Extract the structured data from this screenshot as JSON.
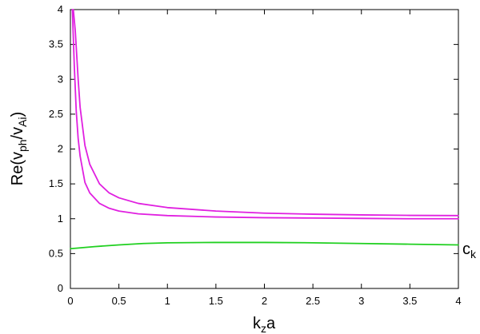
{
  "chart_data": {
    "type": "line",
    "xlabel": {
      "base": "k",
      "sub": "z",
      "tail": "a"
    },
    "ylabel": {
      "pre": "Re(v",
      "sub1": "ph",
      "mid": "/v",
      "sub2": "Ai",
      "post": ")"
    },
    "xlim": [
      0,
      4
    ],
    "ylim": [
      0,
      4
    ],
    "xticks": [
      "0",
      "0.5",
      "1",
      "1.5",
      "2",
      "2.5",
      "3",
      "3.5",
      "4"
    ],
    "yticks": [
      "0",
      "0.5",
      "1",
      "1.5",
      "2",
      "2.5",
      "3",
      "3.5",
      "4"
    ],
    "grid": false,
    "annotation": {
      "base": "c",
      "sub": "k"
    },
    "series": [
      {
        "color": "#e020e0",
        "x": [
          0.03,
          0.05,
          0.08,
          0.1,
          0.15,
          0.2,
          0.3,
          0.4,
          0.5,
          0.7,
          1.0,
          1.5,
          2.0,
          2.5,
          3.0,
          3.5,
          4.0
        ],
        "y": [
          4.0,
          3.7,
          3.0,
          2.6,
          2.05,
          1.78,
          1.5,
          1.37,
          1.3,
          1.22,
          1.16,
          1.11,
          1.08,
          1.065,
          1.055,
          1.048,
          1.045
        ]
      },
      {
        "color": "#e020e0",
        "x": [
          0.02,
          0.04,
          0.06,
          0.08,
          0.1,
          0.15,
          0.2,
          0.3,
          0.4,
          0.5,
          0.7,
          1.0,
          1.5,
          2.0,
          2.5,
          3.0,
          3.5,
          4.0
        ],
        "y": [
          4.0,
          3.2,
          2.55,
          2.15,
          1.9,
          1.52,
          1.37,
          1.22,
          1.15,
          1.11,
          1.07,
          1.045,
          1.025,
          1.015,
          1.01,
          1.005,
          1.0,
          1.0
        ]
      },
      {
        "color": "#20d020",
        "x": [
          0.0,
          0.25,
          0.5,
          0.75,
          1.0,
          1.5,
          2.0,
          2.5,
          3.0,
          3.5,
          4.0
        ],
        "y": [
          0.57,
          0.6,
          0.625,
          0.645,
          0.655,
          0.66,
          0.66,
          0.655,
          0.645,
          0.635,
          0.625
        ]
      }
    ]
  }
}
